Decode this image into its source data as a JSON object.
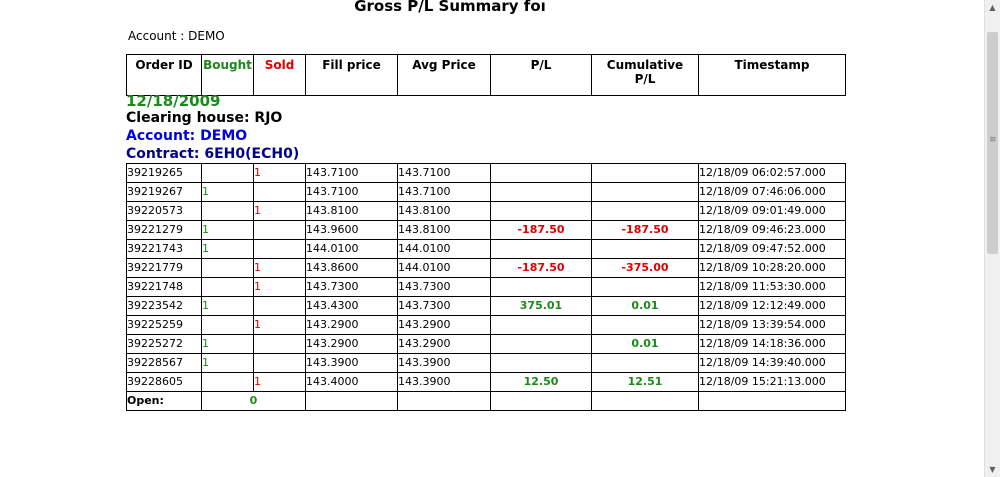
{
  "title": "Gross P/L Summary foı",
  "account_top": {
    "label": "Account",
    "value": "DEMO"
  },
  "headers": {
    "order_id": "Order ID",
    "bought": "Bought",
    "sold": "Sold",
    "fill_price": "Fill price",
    "avg_price": "Avg Price",
    "pl": "P/L",
    "cum_pl_line1": "Cumulative",
    "cum_pl_line2": "P/L",
    "timestamp": "Timestamp"
  },
  "section": {
    "date": "12/18/2009",
    "clearing_house": "Clearing house: RJO",
    "account": "Account: DEMO",
    "contract": "Contract: 6EH0(ECH0)"
  },
  "rows": [
    {
      "order_id": "39219265",
      "bought": "",
      "sold": "1",
      "fill": "143.7100",
      "avg": "143.7100",
      "pl": "",
      "cum": "",
      "ts": "12/18/09 06:02:57.000"
    },
    {
      "order_id": "39219267",
      "bought": "1",
      "sold": "",
      "fill": "143.7100",
      "avg": "143.7100",
      "pl": "",
      "cum": "",
      "ts": "12/18/09 07:46:06.000"
    },
    {
      "order_id": "39220573",
      "bought": "",
      "sold": "1",
      "fill": "143.8100",
      "avg": "143.8100",
      "pl": "",
      "cum": "",
      "ts": "12/18/09 09:01:49.000"
    },
    {
      "order_id": "39221279",
      "bought": "1",
      "sold": "",
      "fill": "143.9600",
      "avg": "143.8100",
      "pl": "-187.50",
      "cum": "-187.50",
      "ts": "12/18/09 09:46:23.000"
    },
    {
      "order_id": "39221743",
      "bought": "1",
      "sold": "",
      "fill": "144.0100",
      "avg": "144.0100",
      "pl": "",
      "cum": "",
      "ts": "12/18/09 09:47:52.000"
    },
    {
      "order_id": "39221779",
      "bought": "",
      "sold": "1",
      "fill": "143.8600",
      "avg": "144.0100",
      "pl": "-187.50",
      "cum": "-375.00",
      "ts": "12/18/09 10:28:20.000"
    },
    {
      "order_id": "39221748",
      "bought": "",
      "sold": "1",
      "fill": "143.7300",
      "avg": "143.7300",
      "pl": "",
      "cum": "",
      "ts": "12/18/09 11:53:30.000"
    },
    {
      "order_id": "39223542",
      "bought": "1",
      "sold": "",
      "fill": "143.4300",
      "avg": "143.7300",
      "pl": "375.01",
      "cum": "0.01",
      "ts": "12/18/09 12:12:49.000"
    },
    {
      "order_id": "39225259",
      "bought": "",
      "sold": "1",
      "fill": "143.2900",
      "avg": "143.2900",
      "pl": "",
      "cum": "",
      "ts": "12/18/09 13:39:54.000"
    },
    {
      "order_id": "39225272",
      "bought": "1",
      "sold": "",
      "fill": "143.2900",
      "avg": "143.2900",
      "pl": "",
      "cum": "0.01",
      "ts": "12/18/09 14:18:36.000"
    },
    {
      "order_id": "39228567",
      "bought": "1",
      "sold": "",
      "fill": "143.3900",
      "avg": "143.3900",
      "pl": "",
      "cum": "",
      "ts": "12/18/09 14:39:40.000"
    },
    {
      "order_id": "39228605",
      "bought": "",
      "sold": "1",
      "fill": "143.4000",
      "avg": "143.3900",
      "pl": "12.50",
      "cum": "12.51",
      "ts": "12/18/09 15:21:13.000"
    }
  ],
  "open_row": {
    "label": "Open:",
    "value": "0"
  },
  "colors": {
    "positive": "#1a8a1a",
    "negative": "#e00000",
    "account_blue": "#0000e0",
    "contract_navy": "#00008b"
  },
  "scrollbar": {
    "up_icon": "triangle-up",
    "down_icon": "triangle-down"
  }
}
